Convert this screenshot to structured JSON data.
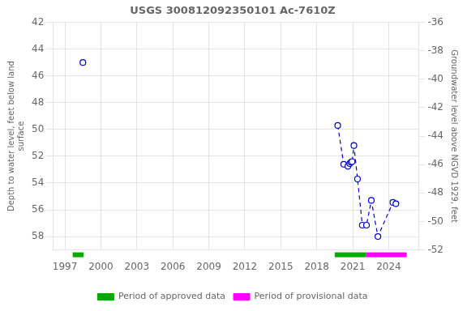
{
  "chart_data": {
    "type": "line",
    "title": "USGS 300812092350101 Ac-7610Z",
    "y_label": "Depth to water level, feet below land\nsurface",
    "y2_label": "Groundwater level above NGVD 1929, feet",
    "xlim": [
      1996.0,
      2026.5
    ],
    "xticks": [
      1997,
      2000,
      2003,
      2006,
      2009,
      2012,
      2015,
      2018,
      2021,
      2024
    ],
    "ylim": [
      59.0,
      42
    ],
    "yticks": [
      42,
      44,
      46,
      48,
      50,
      52,
      54,
      56,
      58
    ],
    "y2lim": [
      -52,
      -36
    ],
    "y2ticks": [
      -36,
      -38,
      -40,
      -42,
      -44,
      -46,
      -48,
      -50,
      -52
    ],
    "grid": true,
    "legend": "bottom",
    "series": [
      {
        "x": [
          1998.5
        ],
        "values": [
          45.0
        ],
        "color": "#0000CC",
        "marker": "circle",
        "line_style": "none"
      },
      {
        "x": [
          2019.75,
          2020.25,
          2020.6,
          2020.75,
          2020.85,
          2020.95,
          2021.1,
          2021.4,
          2021.8,
          2022.15,
          2022.55,
          2023.1,
          2024.35,
          2024.6
        ],
        "values": [
          49.7,
          52.6,
          52.75,
          52.55,
          52.45,
          52.4,
          51.2,
          53.7,
          57.15,
          57.15,
          55.3,
          58.0,
          55.45,
          55.55
        ],
        "color": "#0000CC",
        "marker": "circle",
        "line_style": "dashed"
      },
      {
        "name": "Period of approved data",
        "type": "period",
        "color": "#00AA00",
        "values": [
          [
            1997.65,
            1998.55
          ],
          [
            2019.5,
            2022.1
          ]
        ]
      },
      {
        "name": "Period of provisional data",
        "type": "period",
        "color": "#FF00FF",
        "values": [
          [
            2022.1,
            2025.5
          ]
        ]
      }
    ]
  }
}
